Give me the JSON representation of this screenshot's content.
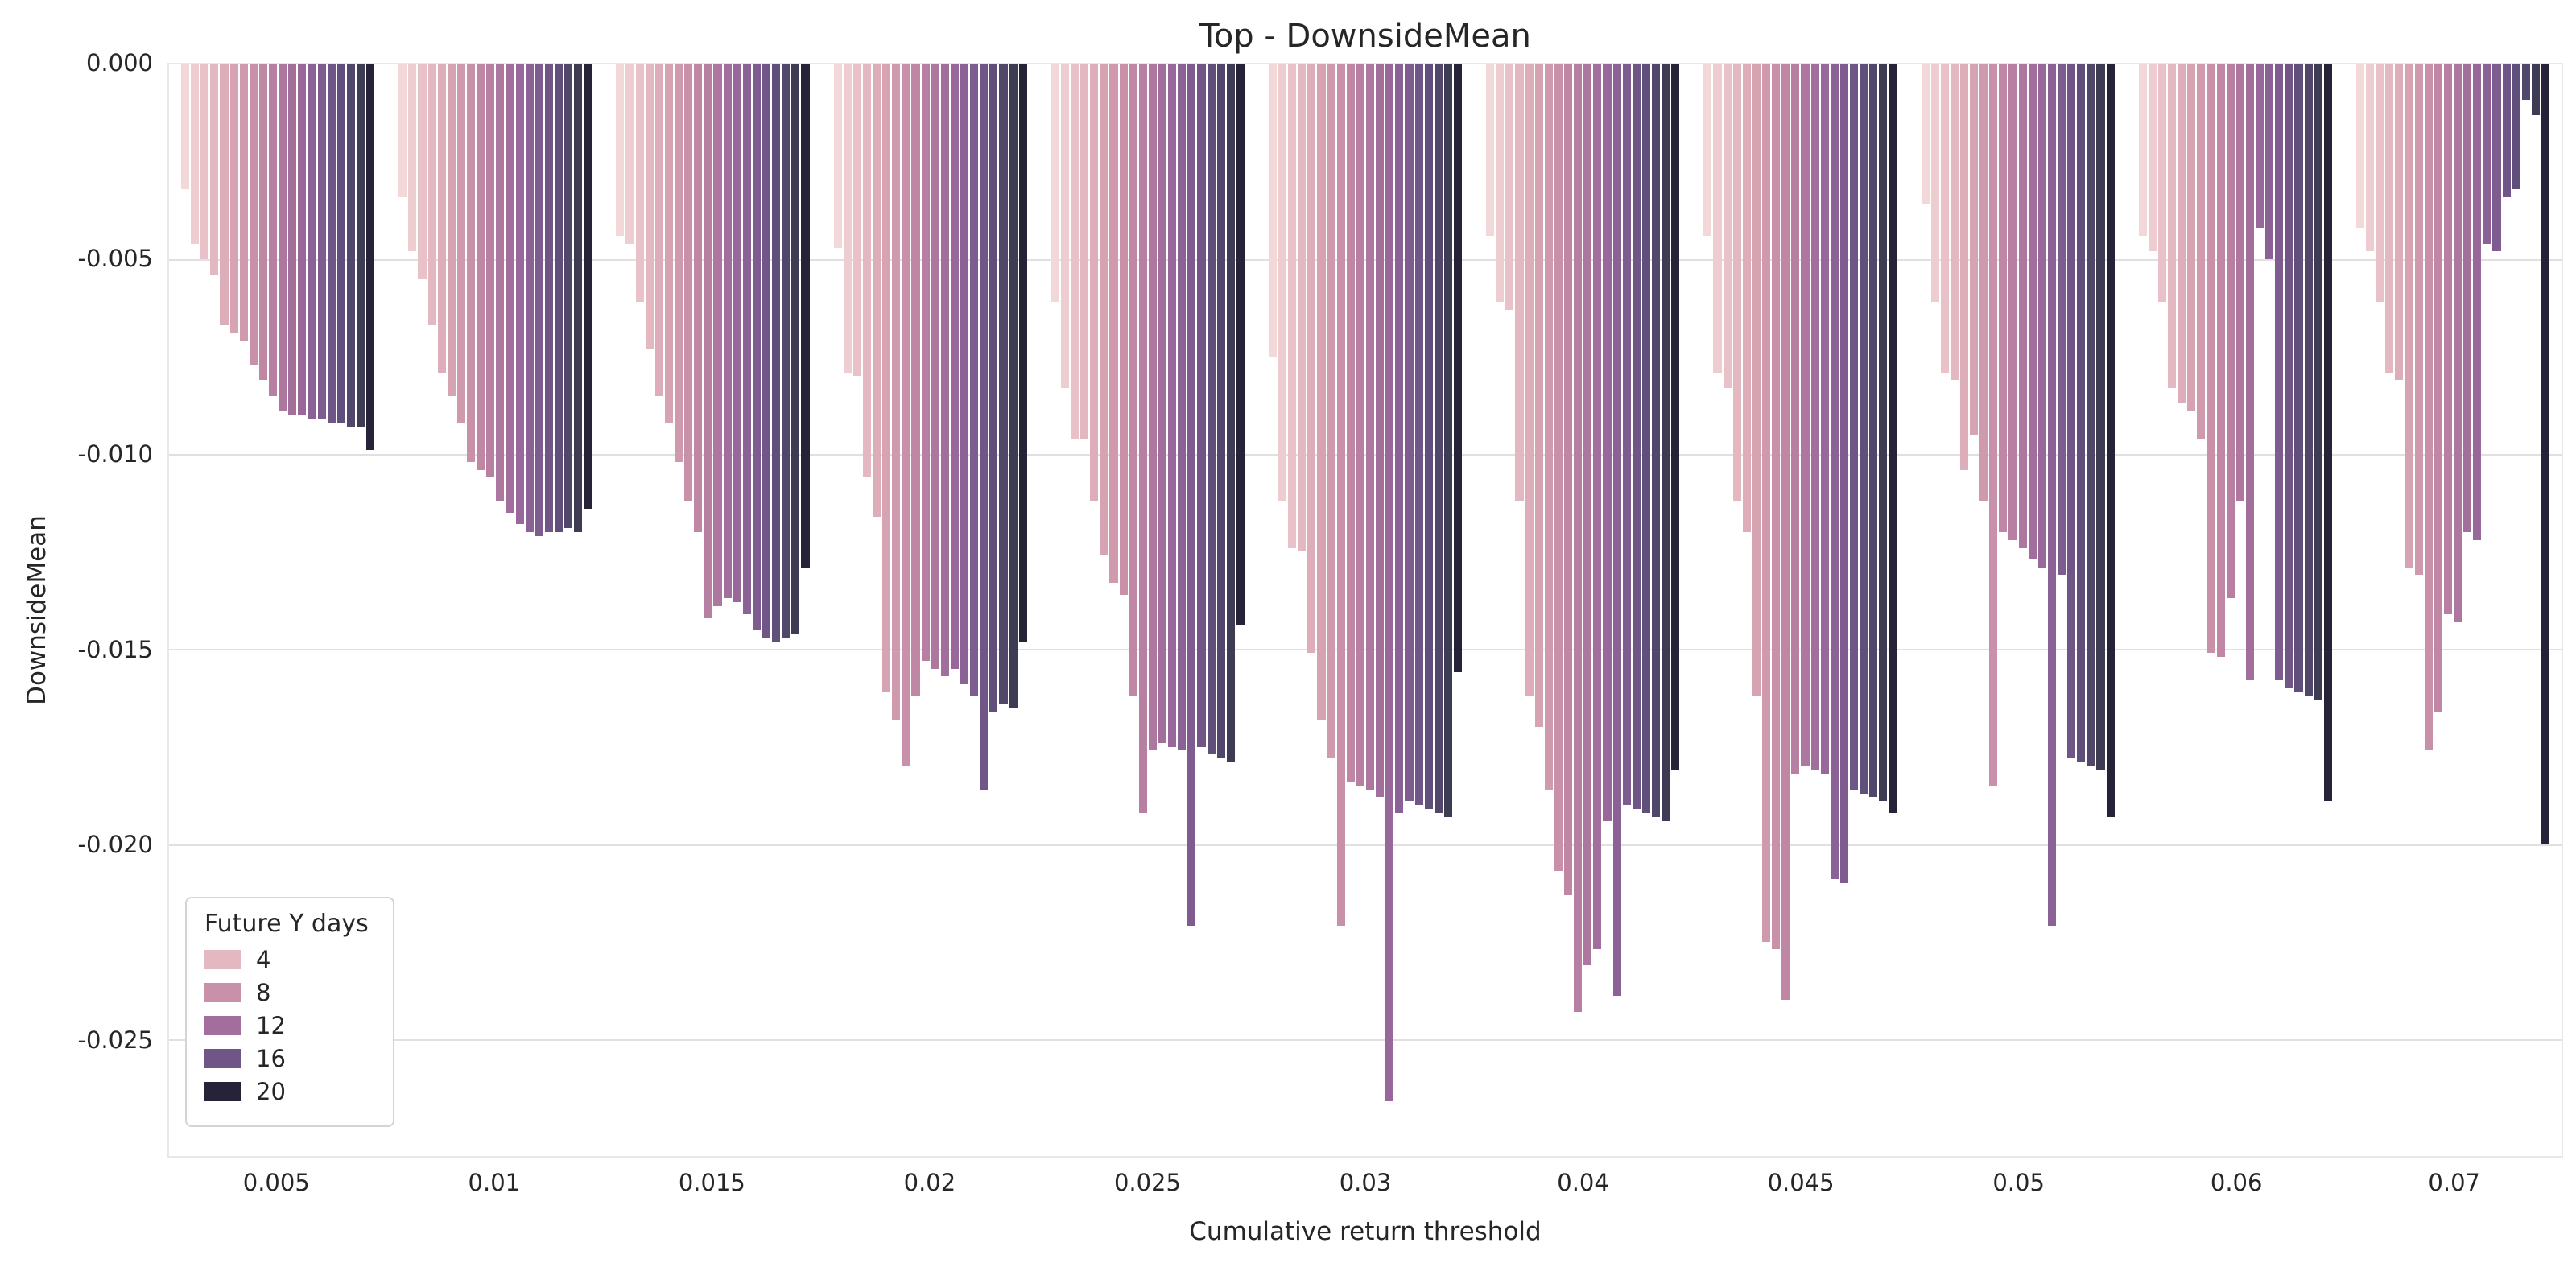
{
  "chart_data": {
    "type": "bar",
    "title": "Top - DownsideMean",
    "xlabel": "Cumulative return threshold",
    "ylabel": "DownsideMean",
    "legend_title": "Future Y days",
    "legend_position": "lower left",
    "grid": "horizontal",
    "orientation": "vertical-negative",
    "categories": [
      "0.005",
      "0.01",
      "0.015",
      "0.02",
      "0.025",
      "0.03",
      "0.04",
      "0.045",
      "0.05",
      "0.06",
      "0.07"
    ],
    "hue_levels": [
      1,
      2,
      3,
      4,
      5,
      6,
      7,
      8,
      9,
      10,
      11,
      12,
      13,
      14,
      15,
      16,
      17,
      18,
      19,
      20
    ],
    "palette": [
      "#f3d8da",
      "#eecdd1",
      "#e9c2c9",
      "#e3b8c1",
      "#ddadba",
      "#d6a3b3",
      "#cf99ae",
      "#c890a9",
      "#c087a5",
      "#b77fa2",
      "#ad779f",
      "#a26f9c",
      "#976899",
      "#8b6295",
      "#7e5c8f",
      "#705687",
      "#614f7b",
      "#50476a",
      "#3d3c53",
      "#262338"
    ],
    "legend_entries": [
      {
        "label": "4",
        "color": "#e3b8c1"
      },
      {
        "label": "8",
        "color": "#c890a9"
      },
      {
        "label": "12",
        "color": "#a26f9c"
      },
      {
        "label": "16",
        "color": "#705687"
      },
      {
        "label": "20",
        "color": "#262338"
      }
    ],
    "ylim": [
      -0.028,
      0
    ],
    "yticks": [
      0,
      -0.005,
      -0.01,
      -0.015,
      -0.02,
      -0.025
    ],
    "ytick_labels": [
      "0.000",
      "-0.005",
      "-0.010",
      "-0.015",
      "-0.020",
      "-0.025"
    ],
    "values": [
      [
        -0.0032,
        -0.0046,
        -0.005,
        -0.0054,
        -0.0067,
        -0.0069,
        -0.0071,
        -0.0077,
        -0.0081,
        -0.0085,
        -0.0089,
        -0.009,
        -0.009,
        -0.0091,
        -0.0091,
        -0.0092,
        -0.0092,
        -0.0093,
        -0.0093,
        -0.0099
      ],
      [
        -0.0034,
        -0.0048,
        -0.0055,
        -0.0067,
        -0.0079,
        -0.0085,
        -0.0092,
        -0.0102,
        -0.0104,
        -0.0106,
        -0.0112,
        -0.0115,
        -0.0118,
        -0.012,
        -0.0121,
        -0.012,
        -0.012,
        -0.0119,
        -0.012,
        -0.0114
      ],
      [
        -0.0044,
        -0.0046,
        -0.0061,
        -0.0073,
        -0.0085,
        -0.0092,
        -0.0102,
        -0.0112,
        -0.012,
        -0.0142,
        -0.0139,
        -0.0137,
        -0.0138,
        -0.0141,
        -0.0145,
        -0.0147,
        -0.0148,
        -0.0147,
        -0.0146,
        -0.0129
      ],
      [
        -0.0047,
        -0.0079,
        -0.008,
        -0.0106,
        -0.0116,
        -0.0161,
        -0.0168,
        -0.018,
        -0.0162,
        -0.0153,
        -0.0155,
        -0.0157,
        -0.0155,
        -0.0159,
        -0.0162,
        -0.0186,
        -0.0166,
        -0.0164,
        -0.0165,
        -0.0148
      ],
      [
        -0.0061,
        -0.0083,
        -0.0096,
        -0.0096,
        -0.0112,
        -0.0126,
        -0.0133,
        -0.0136,
        -0.0162,
        -0.0192,
        -0.0176,
        -0.0174,
        -0.0175,
        -0.0176,
        -0.0221,
        -0.0175,
        -0.0177,
        -0.0178,
        -0.0179,
        -0.0144
      ],
      [
        -0.0075,
        -0.0112,
        -0.0124,
        -0.0125,
        -0.0151,
        -0.0168,
        -0.0178,
        -0.0221,
        -0.0184,
        -0.0185,
        -0.0186,
        -0.0188,
        -0.0266,
        -0.0192,
        -0.0189,
        -0.019,
        -0.0191,
        -0.0192,
        -0.0193,
        -0.0156
      ],
      [
        -0.0044,
        -0.0061,
        -0.0063,
        -0.0112,
        -0.0162,
        -0.017,
        -0.0186,
        -0.0207,
        -0.0213,
        -0.0243,
        -0.0231,
        -0.0227,
        -0.0194,
        -0.0239,
        -0.019,
        -0.0191,
        -0.0192,
        -0.0193,
        -0.0194,
        -0.0181
      ],
      [
        -0.0044,
        -0.0079,
        -0.0083,
        -0.0112,
        -0.012,
        -0.0162,
        -0.0225,
        -0.0227,
        -0.024,
        -0.0182,
        -0.018,
        -0.0181,
        -0.0182,
        -0.0209,
        -0.021,
        -0.0186,
        -0.0187,
        -0.0188,
        -0.0189,
        -0.0192
      ],
      [
        -0.0036,
        -0.0061,
        -0.0079,
        -0.0081,
        -0.0104,
        -0.0095,
        -0.0112,
        -0.0185,
        -0.012,
        -0.0122,
        -0.0124,
        -0.0127,
        -0.0129,
        -0.0221,
        -0.0131,
        -0.0178,
        -0.0179,
        -0.018,
        -0.0181,
        -0.0193
      ],
      [
        -0.0044,
        -0.0048,
        -0.0061,
        -0.0083,
        -0.0087,
        -0.0089,
        -0.0096,
        -0.0151,
        -0.0152,
        -0.0137,
        -0.0112,
        -0.0158,
        -0.0042,
        -0.005,
        -0.0158,
        -0.016,
        -0.0161,
        -0.0162,
        -0.0163,
        -0.0189
      ],
      [
        -0.0042,
        -0.0048,
        -0.0061,
        -0.0079,
        -0.0081,
        -0.0129,
        -0.0131,
        -0.0176,
        -0.0166,
        -0.0141,
        -0.0143,
        -0.012,
        -0.0122,
        -0.0046,
        -0.0048,
        -0.0034,
        -0.0032,
        -0.0009,
        -0.0013,
        -0.02
      ]
    ]
  }
}
